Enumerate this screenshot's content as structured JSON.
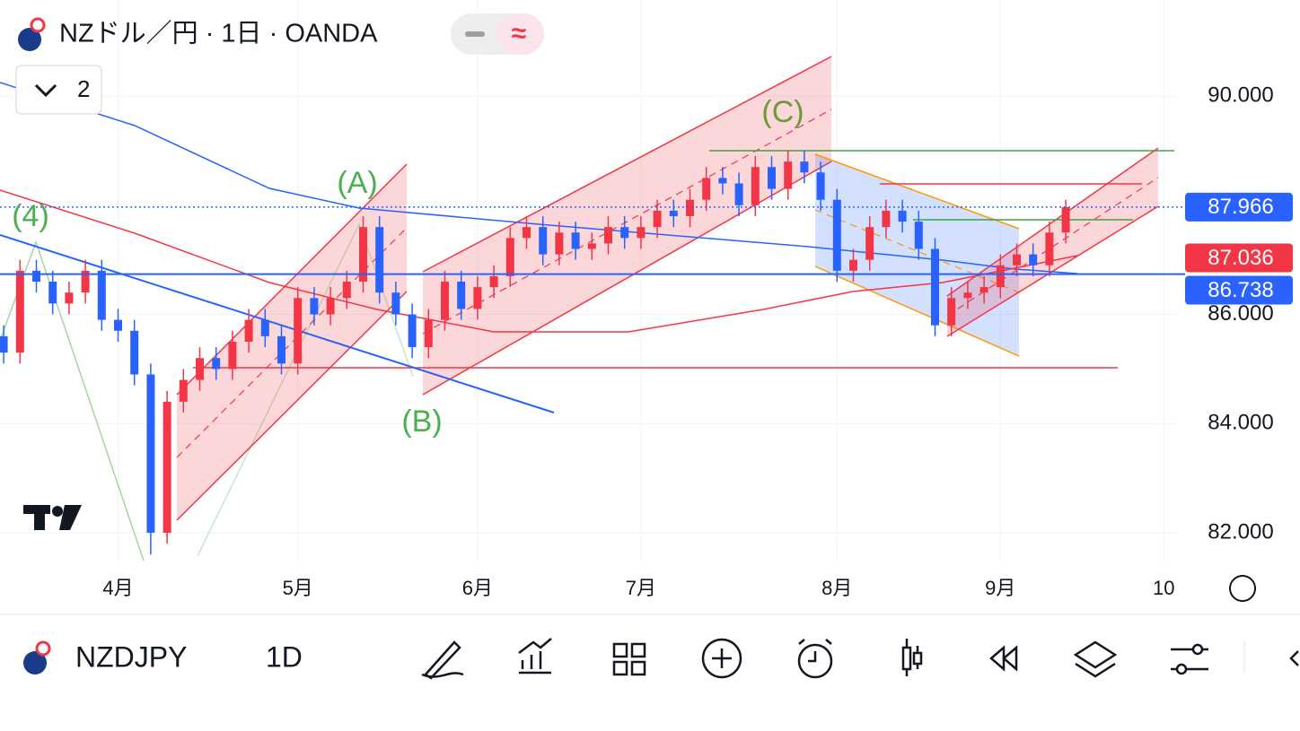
{
  "header": {
    "symbol_title": "NZドル／円 · 1日 · OANDA",
    "indicator_count": 2
  },
  "footer": {
    "symbol": "NZDJPY",
    "interval": "1D"
  },
  "chart_data": {
    "type": "candlestick",
    "categories": [
      null,
      null,
      null,
      null,
      null,
      null,
      null,
      "4月",
      null,
      null,
      null,
      null,
      null,
      null,
      null,
      null,
      null,
      null,
      "5月",
      null,
      null,
      null,
      null,
      null,
      null,
      null,
      null,
      null,
      null,
      "6月",
      null,
      null,
      null,
      null,
      null,
      null,
      null,
      null,
      null,
      "7月",
      null,
      null,
      null,
      null,
      null,
      null,
      null,
      null,
      null,
      null,
      null,
      "8月",
      null,
      null,
      null,
      null,
      null,
      null,
      null,
      null,
      null,
      "9月",
      null,
      null,
      null,
      null,
      null,
      null,
      null,
      null,
      null,
      "10"
    ],
    "series": [
      {
        "name": "open",
        "values": [
          85.6,
          85.3,
          86.8,
          86.6,
          86.2,
          86.4,
          86.8,
          85.9,
          85.7,
          84.9,
          82.0,
          84.4,
          84.8,
          85.2,
          85.0,
          85.5,
          85.9,
          85.6,
          85.1,
          86.3,
          86.0,
          86.3,
          86.6,
          87.6,
          86.4,
          86.0,
          85.4,
          85.9,
          86.6,
          86.1,
          86.5,
          86.7,
          87.4,
          87.6,
          87.1,
          87.5,
          87.2,
          87.3,
          87.6,
          87.4,
          87.6,
          87.9,
          87.8,
          88.1,
          88.5,
          88.4,
          88.0,
          88.7,
          88.3,
          88.8,
          88.6,
          88.1,
          86.8,
          87.0,
          87.6,
          87.9,
          87.7,
          87.2,
          85.8,
          86.3,
          86.4,
          86.5,
          86.9,
          87.1,
          86.9,
          87.5,
          null,
          null,
          null,
          null,
          null,
          null
        ]
      },
      {
        "name": "high",
        "values": [
          85.8,
          87.0,
          87.0,
          86.8,
          86.6,
          87.0,
          87.0,
          86.1,
          85.9,
          85.1,
          84.6,
          85.0,
          85.4,
          85.4,
          85.7,
          86.1,
          86.1,
          85.8,
          86.5,
          86.5,
          86.5,
          86.8,
          87.8,
          87.8,
          86.6,
          86.2,
          86.1,
          86.8,
          86.8,
          86.7,
          86.9,
          87.6,
          87.8,
          87.8,
          87.7,
          87.7,
          87.5,
          87.8,
          87.8,
          87.8,
          88.1,
          88.1,
          88.3,
          88.7,
          88.7,
          88.6,
          88.9,
          88.9,
          89.0,
          89.0,
          88.8,
          88.3,
          87.2,
          87.8,
          88.1,
          88.1,
          87.9,
          87.4,
          86.5,
          86.6,
          86.7,
          87.1,
          87.3,
          87.3,
          87.7,
          88.1,
          null,
          null,
          null,
          null,
          null,
          null
        ]
      },
      {
        "name": "low",
        "values": [
          85.1,
          85.1,
          86.4,
          86.0,
          86.0,
          86.2,
          85.7,
          85.5,
          84.7,
          81.6,
          81.8,
          84.2,
          84.6,
          84.8,
          84.8,
          85.3,
          85.4,
          84.9,
          84.9,
          85.8,
          85.8,
          86.1,
          86.4,
          86.2,
          85.8,
          85.2,
          85.2,
          85.7,
          85.9,
          85.9,
          86.3,
          86.5,
          87.2,
          86.9,
          86.9,
          87.0,
          87.0,
          87.1,
          87.2,
          87.2,
          87.4,
          87.6,
          87.6,
          87.9,
          88.2,
          87.8,
          87.8,
          88.1,
          88.1,
          88.4,
          87.9,
          86.6,
          86.6,
          86.8,
          87.4,
          87.5,
          87.0,
          85.6,
          85.6,
          86.1,
          86.2,
          86.3,
          86.7,
          86.7,
          86.7,
          87.3,
          null,
          null,
          null,
          null,
          null,
          null
        ]
      },
      {
        "name": "close",
        "values": [
          85.3,
          86.8,
          86.6,
          86.2,
          86.4,
          86.8,
          85.9,
          85.7,
          84.9,
          82.0,
          84.4,
          84.8,
          85.2,
          85.0,
          85.5,
          85.9,
          85.6,
          85.1,
          86.3,
          86.0,
          86.3,
          86.6,
          87.6,
          86.4,
          86.0,
          85.4,
          85.9,
          86.6,
          86.1,
          86.5,
          86.7,
          87.4,
          87.6,
          87.1,
          87.5,
          87.2,
          87.3,
          87.6,
          87.4,
          87.6,
          87.9,
          87.8,
          88.1,
          88.5,
          88.4,
          88.0,
          88.7,
          88.3,
          88.8,
          88.6,
          88.1,
          86.8,
          87.0,
          87.6,
          87.9,
          87.7,
          87.2,
          85.8,
          86.3,
          86.4,
          86.5,
          86.9,
          87.1,
          86.9,
          87.5,
          87.966,
          null,
          null,
          null,
          null,
          null,
          null
        ]
      }
    ],
    "up_color": "#f23645",
    "down_color": "#2962ff",
    "ylim": [
      81.49,
      91.76
    ],
    "yticks": [
      {
        "value": 82,
        "label": "82.000"
      },
      {
        "value": 84,
        "label": "84.000"
      },
      {
        "value": 86,
        "label": "86.000"
      },
      {
        "value": 90,
        "label": "90.000"
      }
    ],
    "grid": true,
    "price_lines": [
      {
        "value": 87.966,
        "color": "#2962ff",
        "style": "dotted"
      },
      {
        "value": 87.036,
        "color": "#f23645"
      },
      {
        "value": 86.738,
        "color": "#2962ff",
        "style": "solid"
      }
    ],
    "annotations": [
      "(4)",
      "(A)",
      "(B)",
      "(C)"
    ]
  }
}
